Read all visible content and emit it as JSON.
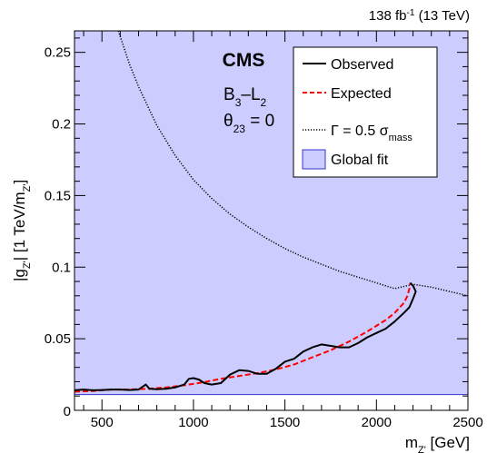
{
  "chart_data": {
    "type": "line",
    "title": "",
    "lumi_label": {
      "main": "138 fb",
      "sup": "-1",
      "rest": " (13 TeV)"
    },
    "experiment": "CMS",
    "model": {
      "prefix": "B",
      "sub1": "3",
      "mid": "–L",
      "sub2": "2"
    },
    "theta": {
      "sym": "θ",
      "sub": "23",
      "rest": " = 0"
    },
    "xlabel": {
      "main": "m",
      "sub": "Z'",
      "rest": " [GeV]"
    },
    "ylabel": {
      "pre": "|g",
      "sub1": "Z'",
      "mid": "| [1 TeV/m",
      "sub2": "Z'",
      "post": "]"
    },
    "xlim": [
      350,
      2500
    ],
    "ylim": [
      0,
      0.265
    ],
    "x_ticks": [
      "500",
      "1000",
      "1500",
      "2000",
      "2500"
    ],
    "x_tick_values": [
      500,
      1000,
      1500,
      2000,
      2500
    ],
    "y_ticks": [
      "0.05",
      "0.1",
      "0.15",
      "0.2",
      "0.25"
    ],
    "y_tick_values": [
      0.05,
      0.1,
      0.15,
      0.2,
      0.25
    ],
    "zero_label": "0",
    "grid": false,
    "legend_position": "top-right",
    "legend": {
      "observed": "Observed",
      "expected": "Expected",
      "gamma": {
        "sym": "Γ = 0.5 σ",
        "sub": "mass"
      },
      "fit": "Global fit"
    },
    "colors": {
      "fill": "#ccccff",
      "fill_edge": "#3333cc",
      "observed": "#000000",
      "expected": "#ff0000",
      "width_curve": "#000000"
    },
    "series": [
      {
        "name": "Observed",
        "style": "solid",
        "points": [
          [
            350,
            0.014
          ],
          [
            400,
            0.0145
          ],
          [
            450,
            0.014
          ],
          [
            500,
            0.0142
          ],
          [
            550,
            0.0145
          ],
          [
            600,
            0.0145
          ],
          [
            650,
            0.0142
          ],
          [
            700,
            0.0145
          ],
          [
            740,
            0.018
          ],
          [
            760,
            0.015
          ],
          [
            800,
            0.0148
          ],
          [
            850,
            0.015
          ],
          [
            900,
            0.016
          ],
          [
            950,
            0.018
          ],
          [
            975,
            0.022
          ],
          [
            1000,
            0.0225
          ],
          [
            1030,
            0.0215
          ],
          [
            1060,
            0.019
          ],
          [
            1100,
            0.018
          ],
          [
            1150,
            0.019
          ],
          [
            1200,
            0.025
          ],
          [
            1250,
            0.028
          ],
          [
            1300,
            0.0275
          ],
          [
            1350,
            0.0255
          ],
          [
            1400,
            0.0255
          ],
          [
            1450,
            0.029
          ],
          [
            1500,
            0.034
          ],
          [
            1550,
            0.036
          ],
          [
            1600,
            0.041
          ],
          [
            1650,
            0.044
          ],
          [
            1700,
            0.046
          ],
          [
            1750,
            0.045
          ],
          [
            1800,
            0.044
          ],
          [
            1850,
            0.044
          ],
          [
            1900,
            0.047
          ],
          [
            1950,
            0.051
          ],
          [
            2000,
            0.054
          ],
          [
            2050,
            0.057
          ],
          [
            2100,
            0.062
          ],
          [
            2150,
            0.068
          ],
          [
            2180,
            0.072
          ],
          [
            2200,
            0.078
          ],
          [
            2215,
            0.083
          ],
          [
            2200,
            0.087
          ],
          [
            2185,
            0.089
          ]
        ]
      },
      {
        "name": "Expected",
        "style": "dashed",
        "points": [
          [
            350,
            0.013
          ],
          [
            450,
            0.0135
          ],
          [
            550,
            0.0145
          ],
          [
            650,
            0.0145
          ],
          [
            750,
            0.015
          ],
          [
            850,
            0.016
          ],
          [
            950,
            0.0175
          ],
          [
            1050,
            0.0195
          ],
          [
            1150,
            0.022
          ],
          [
            1250,
            0.024
          ],
          [
            1350,
            0.026
          ],
          [
            1450,
            0.0285
          ],
          [
            1550,
            0.032
          ],
          [
            1650,
            0.037
          ],
          [
            1750,
            0.042
          ],
          [
            1850,
            0.048
          ],
          [
            1950,
            0.055
          ],
          [
            2050,
            0.063
          ],
          [
            2100,
            0.068
          ],
          [
            2150,
            0.075
          ],
          [
            2170,
            0.08
          ],
          [
            2180,
            0.085
          ],
          [
            2185,
            0.089
          ]
        ]
      },
      {
        "name": "Γ = 0.5 σmass",
        "style": "dotted",
        "points": [
          [
            590,
            0.265
          ],
          [
            650,
            0.242
          ],
          [
            700,
            0.226
          ],
          [
            800,
            0.199
          ],
          [
            900,
            0.178
          ],
          [
            1000,
            0.161
          ],
          [
            1100,
            0.148
          ],
          [
            1200,
            0.137
          ],
          [
            1300,
            0.128
          ],
          [
            1400,
            0.12
          ],
          [
            1500,
            0.113
          ],
          [
            1600,
            0.107
          ],
          [
            1700,
            0.102
          ],
          [
            1800,
            0.097
          ],
          [
            1900,
            0.093
          ],
          [
            2000,
            0.089
          ],
          [
            2100,
            0.085
          ],
          [
            2200,
            0.088
          ],
          [
            2300,
            0.086
          ],
          [
            2400,
            0.083
          ],
          [
            2500,
            0.08
          ]
        ]
      }
    ],
    "global_fit_region": {
      "x": [
        350,
        2500
      ],
      "y_low": 0.011,
      "y_high": 0.265
    }
  }
}
